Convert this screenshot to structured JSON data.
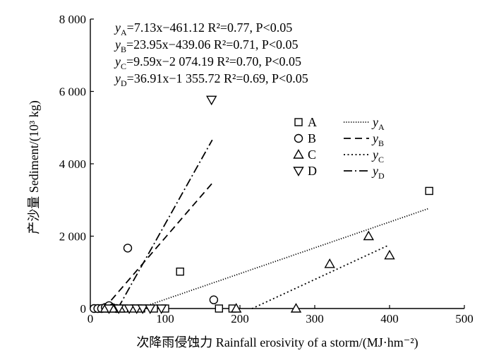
{
  "chart_data": {
    "type": "scatter",
    "xlabel": "次降雨侵蚀力 Rainfall erosivity of a storm/(MJ·hm⁻²)",
    "ylabel": "产沙量 Sediment/(10³ kg)",
    "xlim": [
      0,
      500
    ],
    "ylim": [
      0,
      8000
    ],
    "x_ticks": [
      0,
      100,
      200,
      300,
      400,
      500
    ],
    "x_tick_labels": [
      "0",
      "100",
      "200",
      "300",
      "400",
      "500"
    ],
    "y_ticks": [
      0,
      2000,
      4000,
      6000,
      8000
    ],
    "y_tick_labels": [
      "0",
      "2 000",
      "4 000",
      "6 000",
      "8 000"
    ],
    "grid": false,
    "legend_position": "right",
    "equations": [
      {
        "label": "A",
        "text": "=7.13x−461.12 R²=0.77, P<0.05"
      },
      {
        "label": "B",
        "text": "=23.95x−439.06 R²=0.71, P<0.05"
      },
      {
        "label": "C",
        "text": "=9.59x−2 074.19 R²=0.70, P<0.05"
      },
      {
        "label": "D",
        "text": "=36.91x−1 355.72 R²=0.69, P<0.05"
      }
    ],
    "series": [
      {
        "name": "A",
        "marker": "square",
        "points": [
          [
            8,
            0
          ],
          [
            12,
            0
          ],
          [
            18,
            0
          ],
          [
            28,
            0
          ],
          [
            45,
            0
          ],
          [
            58,
            0
          ],
          [
            68,
            0
          ],
          [
            85,
            0
          ],
          [
            100,
            0
          ],
          [
            120,
            1020
          ],
          [
            172,
            0
          ],
          [
            190,
            0
          ],
          [
            453,
            3250
          ]
        ]
      },
      {
        "name": "B",
        "marker": "circle",
        "points": [
          [
            5,
            0
          ],
          [
            10,
            0
          ],
          [
            15,
            0
          ],
          [
            20,
            30
          ],
          [
            25,
            80
          ],
          [
            30,
            20
          ],
          [
            35,
            0
          ],
          [
            50,
            1670
          ],
          [
            165,
            240
          ]
        ]
      },
      {
        "name": "C",
        "marker": "triangle-up",
        "points": [
          [
            20,
            0
          ],
          [
            30,
            0
          ],
          [
            40,
            0
          ],
          [
            195,
            0
          ],
          [
            275,
            0
          ],
          [
            320,
            1230
          ],
          [
            372,
            2000
          ],
          [
            400,
            1470
          ]
        ]
      },
      {
        "name": "D",
        "marker": "triangle-down",
        "points": [
          [
            25,
            0
          ],
          [
            38,
            0
          ],
          [
            52,
            0
          ],
          [
            62,
            0
          ],
          [
            70,
            0
          ],
          [
            80,
            0
          ],
          [
            95,
            0
          ],
          [
            162,
            5770
          ]
        ]
      }
    ],
    "fit_lines": [
      {
        "name": "yA",
        "slope": 7.13,
        "intercept": -461.12,
        "x_range": [
          65,
          453
        ],
        "style": "dotted-fine"
      },
      {
        "name": "yB",
        "slope": 23.95,
        "intercept": -439.06,
        "x_range": [
          18,
          165
        ],
        "style": "dashed"
      },
      {
        "name": "yC",
        "slope": 9.59,
        "intercept": -2074.19,
        "x_range": [
          216,
          398
        ],
        "style": "dotted"
      },
      {
        "name": "yD",
        "slope": 36.91,
        "intercept": -1355.72,
        "x_range": [
          37,
          163
        ],
        "style": "dash-dot"
      }
    ],
    "legend": {
      "markers": [
        "A",
        "B",
        "C",
        "D"
      ],
      "lines": [
        {
          "base": "y",
          "sub": "A"
        },
        {
          "base": "y",
          "sub": "B"
        },
        {
          "base": "y",
          "sub": "C"
        },
        {
          "base": "y",
          "sub": "D"
        }
      ]
    }
  }
}
